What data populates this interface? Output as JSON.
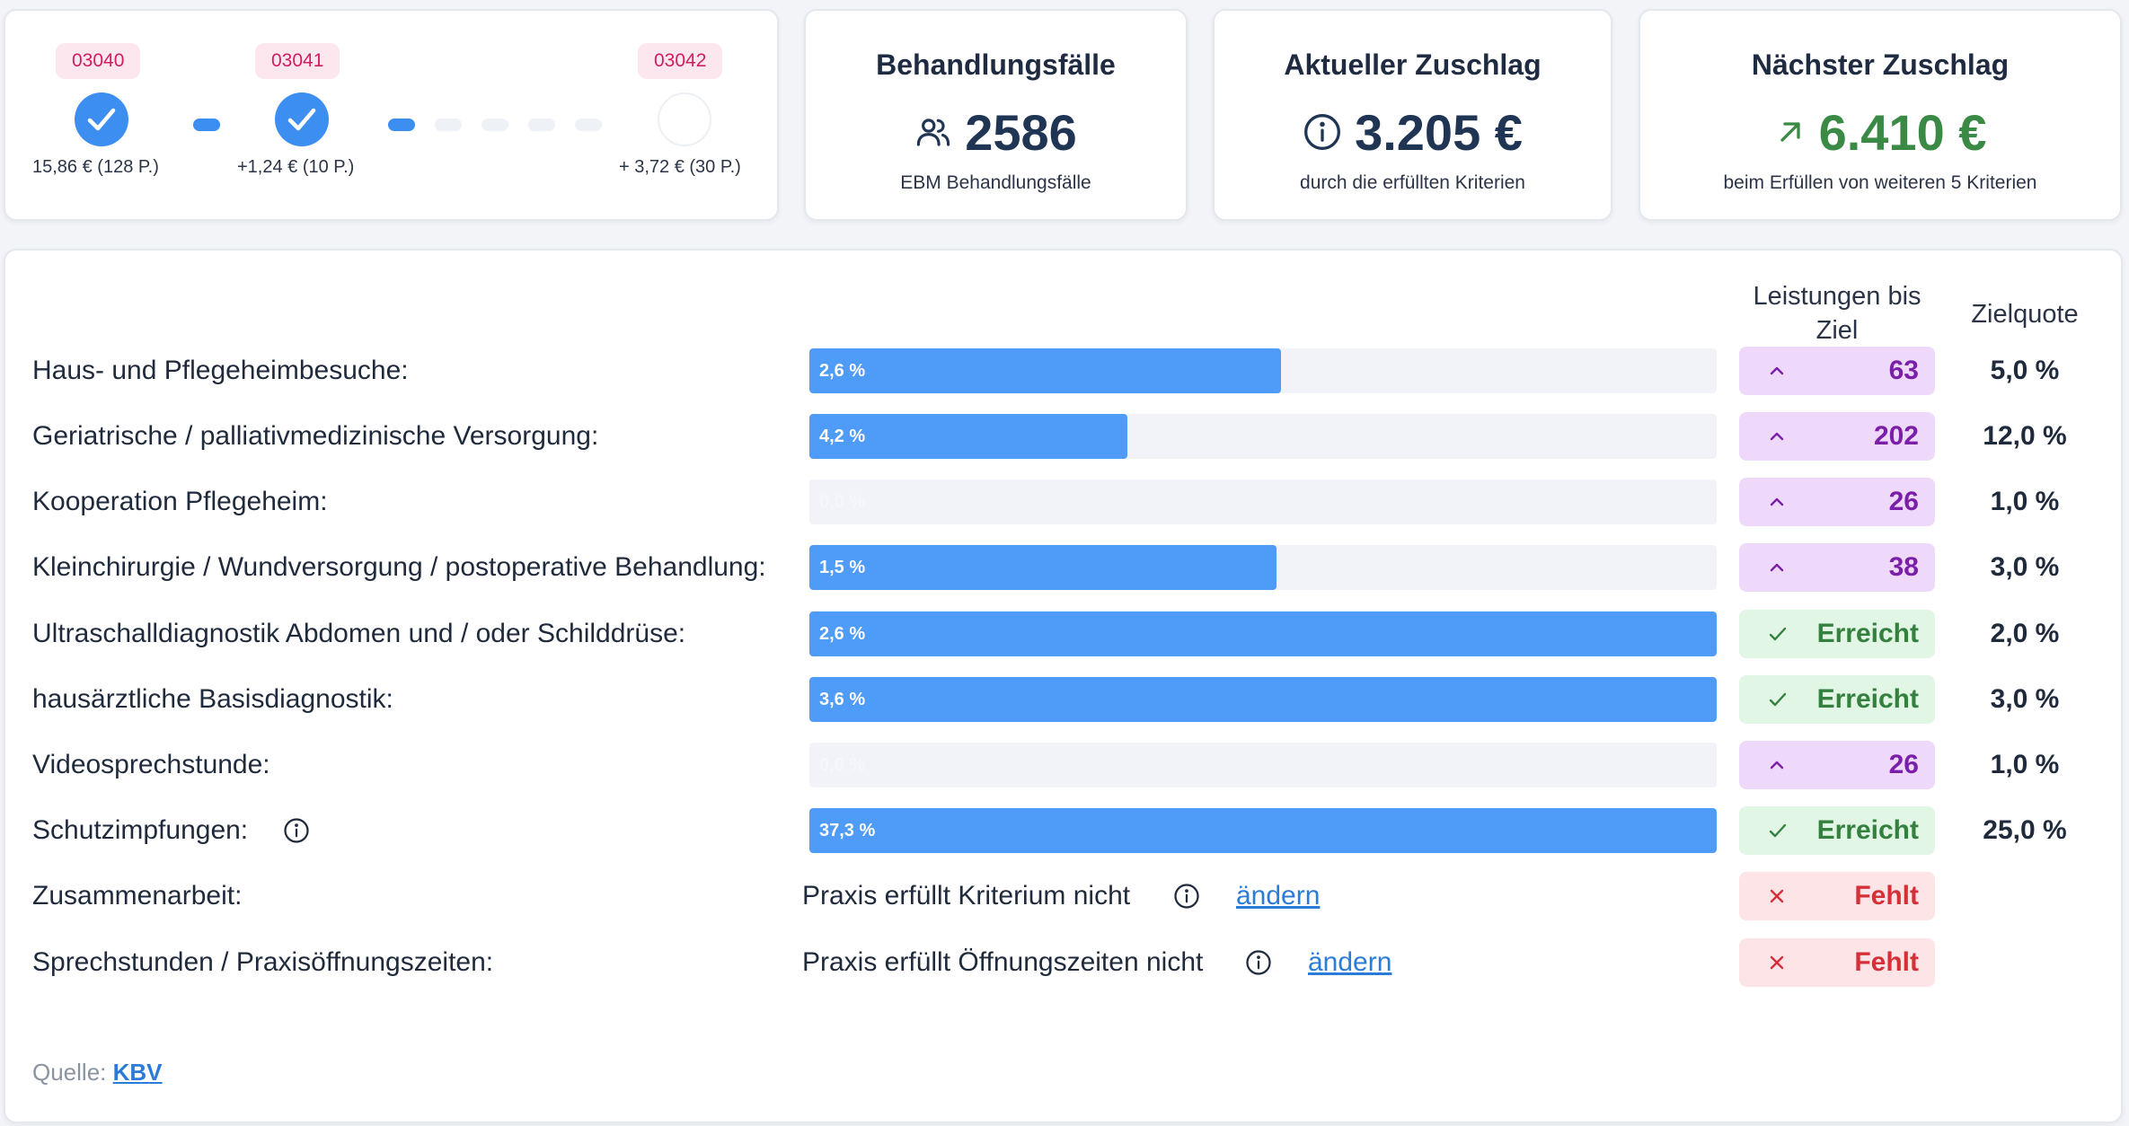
{
  "progress": {
    "steps": [
      {
        "code": "03040",
        "caption": "15,86 € (128 P.)",
        "status": "done"
      },
      {
        "code": "03041",
        "caption": "+1,24 € (10 P.)",
        "status": "done"
      },
      {
        "code": "03042",
        "caption": "+ 3,72 € (30 P.)",
        "status": "open"
      }
    ],
    "connector_active_segments": [
      1,
      1,
      0,
      0,
      0,
      0
    ],
    "colors": {
      "done": "#3c8ef0",
      "badge_bg": "#fde7ee",
      "badge_text": "#d11d62"
    }
  },
  "stats": {
    "cases": {
      "title": "Behandlungsfälle",
      "value": "2586",
      "sub": "EBM Behandlungsfälle",
      "icon": "users-icon"
    },
    "current": {
      "title": "Aktueller Zuschlag",
      "value": "3.205 €",
      "sub": "durch die erfüllten Kriterien",
      "icon": "info-icon"
    },
    "next": {
      "title": "Nächster Zuschlag",
      "value": "6.410 €",
      "sub": "beim Erfüllen von weiteren 5 Kriterien",
      "icon": "arrow-up-right-icon",
      "value_color": "#3a8a46"
    }
  },
  "table": {
    "headers": {
      "leistungen_line1": "Leistungen bis",
      "leistungen_line2": "Ziel",
      "zielquote": "Zielquote"
    },
    "rows": [
      {
        "label": "Haus- und Pflegeheimbesuche:",
        "bar_label": "2,6 %",
        "fill_fraction": 0.52,
        "status": "up",
        "status_text": "63",
        "quota": "5,0 %"
      },
      {
        "label": "Geriatrische / palliativmedizinische Versorgung:",
        "bar_label": "4,2 %",
        "fill_fraction": 0.35,
        "status": "up",
        "status_text": "202",
        "quota": "12,0 %"
      },
      {
        "label": "Kooperation Pflegeheim:",
        "bar_label": "0,0 %",
        "fill_fraction": 0,
        "status": "up",
        "status_text": "26",
        "quota": "1,0 %"
      },
      {
        "label": "Kleinchirurgie / Wundversorgung / postoperative Behandlung:",
        "bar_label": "1,5 %",
        "fill_fraction": 0.515,
        "status": "up",
        "status_text": "38",
        "quota": "3,0 %"
      },
      {
        "label": "Ultraschalldiagnostik Abdomen und / oder Schilddrüse:",
        "bar_label": "2,6 %",
        "fill_fraction": 1.0,
        "status": "ok",
        "status_text": "Erreicht",
        "quota": "2,0 %"
      },
      {
        "label": "hausärztliche Basisdiagnostik:",
        "bar_label": "3,6 %",
        "fill_fraction": 1.0,
        "status": "ok",
        "status_text": "Erreicht",
        "quota": "3,0 %"
      },
      {
        "label": "Videosprechstunde:",
        "bar_label": "0,0 %",
        "fill_fraction": 0,
        "status": "up",
        "status_text": "26",
        "quota": "1,0 %"
      },
      {
        "label": "Schutzimpfungen:",
        "bar_label": "37,3 %",
        "fill_fraction": 1.0,
        "status": "ok",
        "status_text": "Erreicht",
        "quota": "25,0 %",
        "has_info": true
      }
    ],
    "criteria": [
      {
        "label": "Zusammenarbeit:",
        "text": "Praxis erfüllt Kriterium nicht",
        "link": "ändern",
        "status": "no",
        "status_text": "Fehlt"
      },
      {
        "label": "Sprechstunden / Praxisöffnungszeiten:",
        "text": "Praxis erfüllt Öffnungszeiten nicht",
        "link": "ändern",
        "status": "no",
        "status_text": "Fehlt"
      }
    ]
  },
  "source": {
    "label": "Quelle:",
    "link": "KBV"
  }
}
